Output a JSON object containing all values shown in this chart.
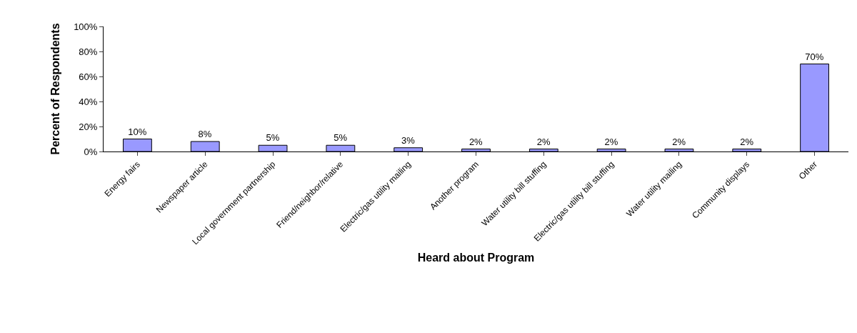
{
  "chart_data": {
    "type": "bar",
    "xlabel": "Heard about Program",
    "ylabel": "Percent of Respondents",
    "categories": [
      "Energy fairs",
      "Newspaper article",
      "Local government partnership",
      "Friend/neighbor/relative",
      "Electric/gas utility mailing",
      "Another program",
      "Water utility bill stuffing",
      "Electric/gas utility bill stuffing",
      "Water utility mailing",
      "Community displays",
      "Other"
    ],
    "values": [
      10,
      8,
      5,
      5,
      3,
      2,
      2,
      2,
      2,
      2,
      70
    ],
    "value_labels": [
      "10%",
      "8%",
      "5%",
      "5%",
      "3%",
      "2%",
      "2%",
      "2%",
      "2%",
      "2%",
      "70%"
    ],
    "color": "#9999ff",
    "ylim": [
      0,
      100
    ],
    "yticks": [
      {
        "value": 0,
        "label": "0%"
      },
      {
        "value": 20,
        "label": "20%"
      },
      {
        "value": 40,
        "label": "40%"
      },
      {
        "value": 60,
        "label": "60%"
      },
      {
        "value": 80,
        "label": "80%"
      },
      {
        "value": 100,
        "label": "100%"
      }
    ],
    "grid": false,
    "legend": false
  }
}
